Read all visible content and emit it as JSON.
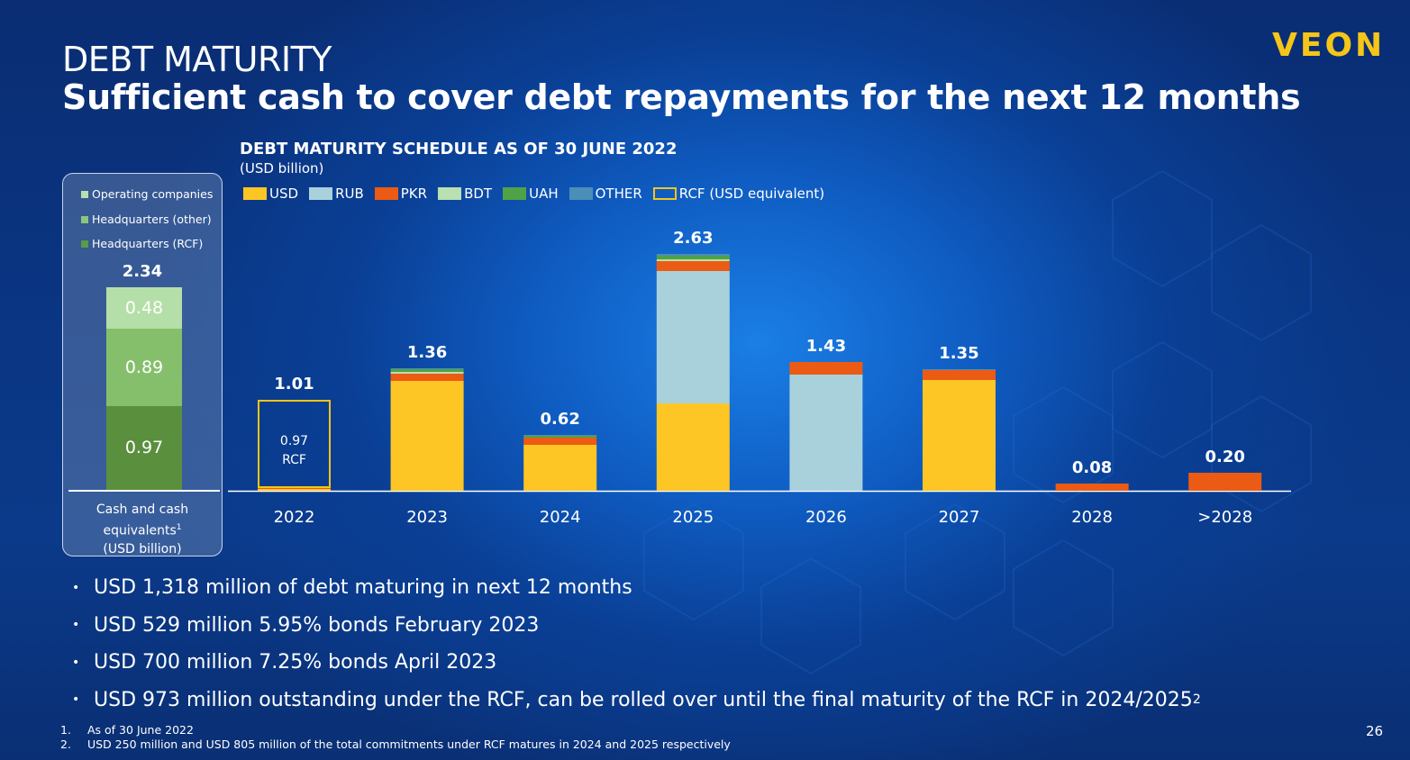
{
  "header": {
    "title": "DEBT MATURITY",
    "subtitle": "Sufficient cash to cover debt repayments for the next 12 months",
    "logo": "VEON",
    "page_number": "26"
  },
  "cash_panel": {
    "legend": [
      {
        "label": "Operating companies",
        "color": "#b6dfae"
      },
      {
        "label": "Headquarters (other)",
        "color": "#8cc67a"
      },
      {
        "label": "Headquarters (RCF)",
        "color": "#5a9a48"
      }
    ],
    "total": "2.34",
    "segments": [
      {
        "label": "Headquarters (RCF)",
        "value": 0.97,
        "text": "0.97",
        "color": "#5a8f3e"
      },
      {
        "label": "Headquarters (other)",
        "value": 0.89,
        "text": "0.89",
        "color": "#86bf6c"
      },
      {
        "label": "Operating companies",
        "value": 0.48,
        "text": "0.48",
        "color": "#b4dfa8"
      }
    ],
    "caption_line1": "Cash and cash",
    "caption_line2": "equivalents",
    "caption_sup": "1",
    "caption_line3": "(USD billion)"
  },
  "chart_data": {
    "type": "bar",
    "title": "DEBT MATURITY SCHEDULE AS OF 30 JUNE 2022",
    "subtitle": "(USD billion)",
    "categories": [
      "2022",
      "2023",
      "2024",
      "2025",
      "2026",
      "2027",
      "2028",
      ">2028"
    ],
    "totals": [
      "1.01",
      "1.36",
      "0.62",
      "2.63",
      "1.43",
      "1.35",
      "0.08",
      "0.20"
    ],
    "series": [
      {
        "name": "USD",
        "color": "#fec624",
        "values": [
          0.02,
          1.22,
          0.51,
          0.97,
          0,
          1.23,
          0,
          0
        ]
      },
      {
        "name": "RUB",
        "color": "#a9d1dc",
        "values": [
          0,
          0,
          0,
          1.47,
          1.29,
          0,
          0,
          0
        ]
      },
      {
        "name": "PKR",
        "color": "#ec5b13",
        "values": [
          0.02,
          0.08,
          0.08,
          0.11,
          0.14,
          0.11,
          0.08,
          0.2
        ]
      },
      {
        "name": "BDT",
        "color": "#b8e0b0",
        "values": [
          0,
          0.02,
          0,
          0.02,
          0,
          0,
          0,
          0
        ]
      },
      {
        "name": "UAH",
        "color": "#4fa246",
        "values": [
          0,
          0.03,
          0.02,
          0.04,
          0,
          0,
          0,
          0
        ]
      },
      {
        "name": "OTHER",
        "color": "#4a8fb8",
        "values": [
          0,
          0.01,
          0.01,
          0.02,
          0,
          0.01,
          0,
          0
        ]
      },
      {
        "name": "RCF (USD equivalent)",
        "color": "#f5c518",
        "outline": true,
        "values": [
          0.97,
          0,
          0,
          0,
          0,
          0,
          0,
          0
        ]
      }
    ],
    "annotations": [
      {
        "category": "2022",
        "line1": "0.97",
        "line2": "RCF"
      }
    ],
    "ylim": [
      0,
      2.9
    ]
  },
  "bullets": [
    "USD 1,318 million of debt maturing in next 12 months",
    "USD 529 million 5.95% bonds February 2023",
    "USD 700 million 7.25% bonds April 2023",
    "USD 973 million outstanding under the RCF, can be rolled over until the final maturity of the RCF in 2024/2025"
  ],
  "bullet_sup": "2",
  "bullet_marker": "•",
  "footnotes": [
    {
      "num": "1.",
      "text": "As of 30 June 2022"
    },
    {
      "num": "2.",
      "text": "USD 250 million and USD 805 million of the total commitments under RCF matures in 2024 and 2025 respectively"
    }
  ]
}
